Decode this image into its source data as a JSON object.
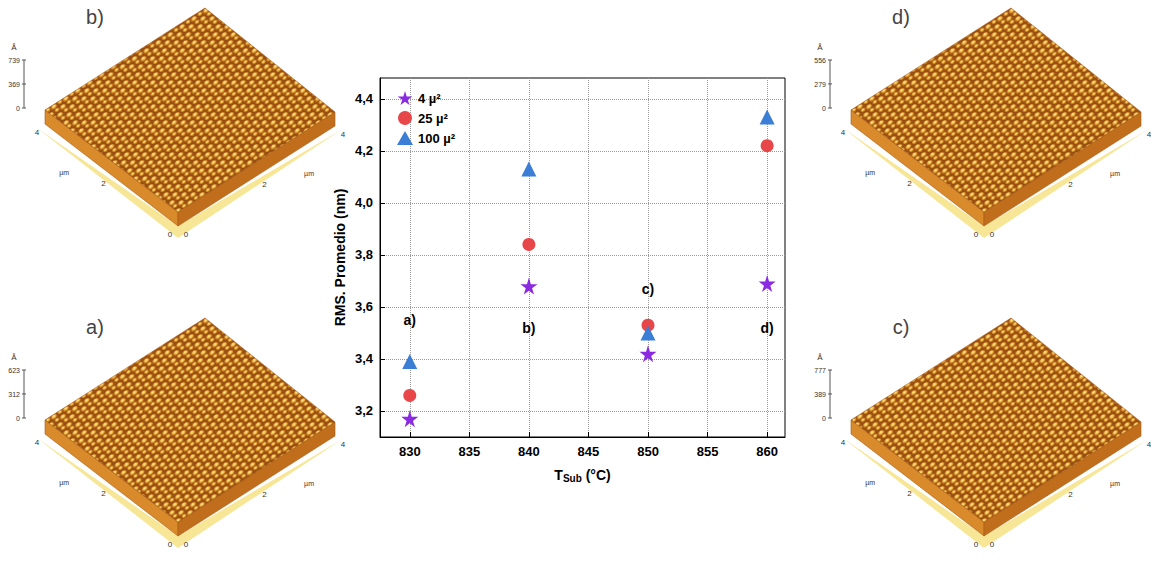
{
  "chart_data": {
    "type": "scatter",
    "x_label": "T",
    "x_label_subscript": "Sub",
    "x_label_unit": "(°C)",
    "y_label": "RMS. Promedio (nm)",
    "xlim": [
      827.5,
      861.5
    ],
    "xticks": [
      830,
      835,
      840,
      845,
      850,
      855,
      860
    ],
    "ylim": [
      3.1,
      4.48
    ],
    "yticks": [
      {
        "value": 3.2,
        "label": "3,2"
      },
      {
        "value": 3.4,
        "label": "3,4"
      },
      {
        "value": 3.6,
        "label": "3,6"
      },
      {
        "value": 3.8,
        "label": "3,8"
      },
      {
        "value": 4.0,
        "label": "4,0"
      },
      {
        "value": 4.2,
        "label": "4,2"
      },
      {
        "value": 4.4,
        "label": "4,4"
      }
    ],
    "grid": true,
    "legend": "upper left",
    "series": [
      {
        "name": "4 µ²",
        "color": "#8a2be2",
        "marker": "star",
        "x": [
          830,
          840,
          850,
          860
        ],
        "values": [
          3.17,
          3.68,
          3.42,
          3.69
        ]
      },
      {
        "name": "25 µ²",
        "color": "#e8474a",
        "marker": "circle",
        "x": [
          830,
          840,
          850,
          860
        ],
        "values": [
          3.26,
          3.84,
          3.53,
          4.22
        ]
      },
      {
        "name": "100 µ²",
        "color": "#3a7fd5",
        "marker": "triangle",
        "x": [
          830,
          840,
          850,
          860
        ],
        "values": [
          3.39,
          4.13,
          3.5,
          4.33
        ]
      }
    ],
    "annotations": [
      {
        "x": 830,
        "y": 3.55,
        "text": "a)"
      },
      {
        "x": 840,
        "y": 3.52,
        "text": "b)"
      },
      {
        "x": 850,
        "y": 3.67,
        "text": "c)"
      },
      {
        "x": 860,
        "y": 3.52,
        "text": "d)"
      }
    ]
  },
  "afm_images": [
    {
      "label": "b)",
      "position": "upper left",
      "z_unit": "Å",
      "z_ticks": [
        0,
        369,
        739
      ],
      "xy_unit": "µm",
      "xy_ticks": [
        0,
        2,
        4
      ]
    },
    {
      "label": "a)",
      "position": "lower left",
      "z_unit": "Å",
      "z_ticks": [
        0,
        312,
        623
      ],
      "xy_unit": "µm",
      "xy_ticks": [
        0,
        2,
        4
      ]
    },
    {
      "label": "d)",
      "position": "upper right",
      "z_unit": "Å",
      "z_ticks": [
        0,
        279,
        556
      ],
      "xy_unit": "µm",
      "xy_ticks": [
        0,
        2,
        4
      ]
    },
    {
      "label": "c)",
      "position": "lower right",
      "z_unit": "Å",
      "z_ticks": [
        0,
        389,
        777
      ],
      "xy_unit": "µm",
      "xy_ticks": [
        0,
        2,
        4
      ]
    }
  ]
}
